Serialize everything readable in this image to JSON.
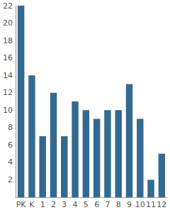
{
  "chart_data": {
    "type": "bar",
    "categories": [
      "PK",
      "K",
      "1",
      "2",
      "3",
      "4",
      "5",
      "6",
      "7",
      "8",
      "9",
      "10",
      "11",
      "12"
    ],
    "values": [
      22,
      14,
      7,
      12,
      7,
      11,
      10,
      9,
      10,
      10,
      13,
      9,
      2,
      5
    ],
    "color": "#336a90",
    "ylim": [
      0,
      22
    ],
    "yticks": [
      2,
      4,
      6,
      8,
      10,
      12,
      14,
      16,
      18,
      20,
      22
    ],
    "grid": false
  }
}
